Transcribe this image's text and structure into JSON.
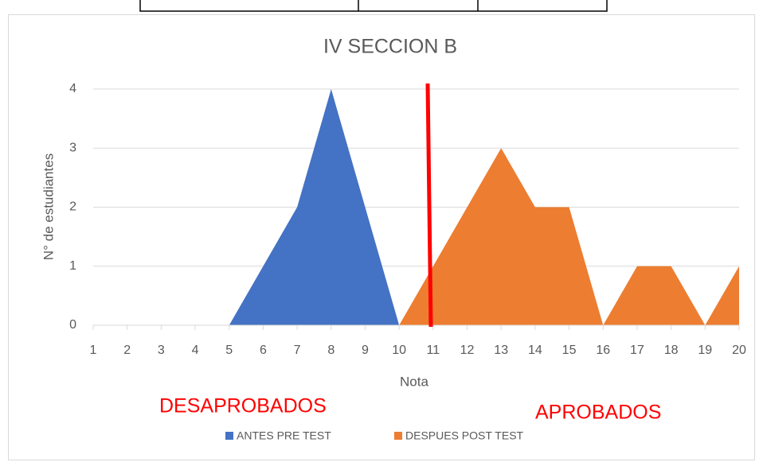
{
  "chart_data": {
    "type": "area",
    "title": "IV SECCION B",
    "x_label": "Nota",
    "y_label": "N° de estudiantes",
    "categories": [
      1,
      2,
      3,
      4,
      5,
      6,
      7,
      8,
      9,
      10,
      11,
      12,
      13,
      14,
      15,
      16,
      17,
      18,
      19,
      20
    ],
    "series": [
      {
        "name": "ANTES PRE TEST",
        "color": "#4472c4",
        "values": [
          0,
          0,
          0,
          0,
          0,
          1,
          2,
          4,
          2,
          0,
          0,
          0,
          0,
          0,
          0,
          0,
          0,
          0,
          0,
          0
        ]
      },
      {
        "name": "DESPUES POST TEST",
        "color": "#ed7d31",
        "values": [
          0,
          0,
          0,
          0,
          0,
          0,
          0,
          0,
          0,
          0,
          1,
          2,
          3,
          2,
          2,
          0,
          1,
          1,
          0,
          1
        ]
      }
    ],
    "ylim": [
      0,
      4
    ],
    "yticks": [
      0,
      1,
      2,
      3,
      4
    ],
    "grid": true,
    "legend": "bottom",
    "annotations": [
      "DESAPROBADOS",
      "APROBADOS"
    ]
  }
}
